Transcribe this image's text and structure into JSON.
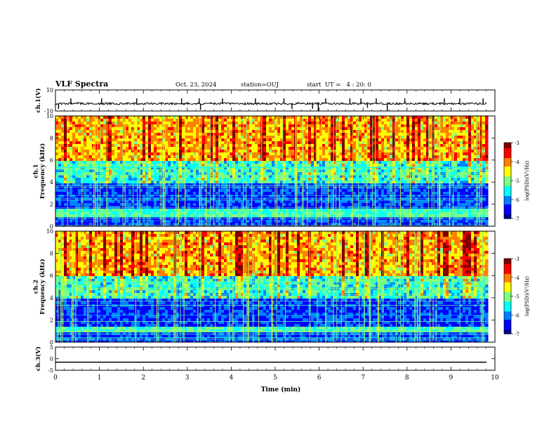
{
  "header": {
    "title": "VLF Spectra",
    "date": "Oct. 23, 2024",
    "station": "station=OUJ",
    "start": "start  UT =   4 : 20: 0"
  },
  "chart_data": [
    {
      "type": "line",
      "name": "waveform-ch1",
      "ylabel": "ch.1(V)",
      "ylim": [
        -10,
        10
      ],
      "yticks": [
        "10",
        "-10"
      ],
      "xlim": [
        0,
        10
      ],
      "baseline": -3,
      "spikes": [
        {
          "t": 0.07,
          "v": -8
        },
        {
          "t": 0.35,
          "v": 2
        },
        {
          "t": 1.05,
          "v": 2
        },
        {
          "t": 1.85,
          "v": 2
        },
        {
          "t": 2.87,
          "v": 2
        },
        {
          "t": 3.27,
          "v": 2
        },
        {
          "t": 3.3,
          "v": -9
        },
        {
          "t": 3.8,
          "v": 2
        },
        {
          "t": 4.55,
          "v": 2
        },
        {
          "t": 5.2,
          "v": 2
        },
        {
          "t": 5.38,
          "v": -8
        },
        {
          "t": 5.85,
          "v": -8
        },
        {
          "t": 5.98,
          "v": -10
        },
        {
          "t": 6.15,
          "v": 2
        },
        {
          "t": 6.7,
          "v": 2
        },
        {
          "t": 6.95,
          "v": 2
        },
        {
          "t": 7.1,
          "v": -7
        },
        {
          "t": 7.3,
          "v": 2
        },
        {
          "t": 7.55,
          "v": -10
        },
        {
          "t": 7.95,
          "v": 2
        },
        {
          "t": 8.85,
          "v": 2
        },
        {
          "t": 9.2,
          "v": 2
        },
        {
          "t": 9.73,
          "v": 2
        }
      ]
    },
    {
      "type": "heatmap",
      "name": "spectrogram-ch1",
      "ylabel": "ch.1 Frequency (kHz)",
      "ylim": [
        0,
        10
      ],
      "yticks": [
        "0",
        "2",
        "4",
        "6",
        "8",
        "10"
      ],
      "xlim": [
        0,
        10
      ],
      "colorbar": {
        "label": "log(PSD)(V²/Hz)",
        "ticks": [
          "-3",
          "-4",
          "-5",
          "-6",
          "-7"
        ],
        "range": [
          -7,
          -3
        ]
      }
    },
    {
      "type": "heatmap",
      "name": "spectrogram-ch2",
      "ylabel": "ch.2 Frequency (kHz)",
      "ylim": [
        0,
        10
      ],
      "yticks": [
        "0",
        "2",
        "4",
        "6",
        "8",
        "10"
      ],
      "xlim": [
        0,
        10
      ],
      "colorbar": {
        "label": "log(PSD)(V²/Hz)",
        "ticks": [
          "-3",
          "-4",
          "-5",
          "-6",
          "-7"
        ],
        "range": [
          -7,
          -3
        ]
      }
    },
    {
      "type": "line",
      "name": "waveform-ch3",
      "ylabel": "ch.3(V)",
      "ylim": [
        -5,
        5
      ],
      "yticks": [
        "5",
        "0",
        "-5"
      ],
      "xlim": [
        0,
        10
      ],
      "baseline": -1.5
    }
  ],
  "xaxis": {
    "label": "Time (min)",
    "ticks": [
      "0",
      "1",
      "2",
      "3",
      "4",
      "5",
      "6",
      "7",
      "8",
      "9",
      "10"
    ]
  },
  "colors": {
    "jet": [
      "#00008f",
      "#0000ff",
      "#0080ff",
      "#00ffff",
      "#80ff80",
      "#ffff00",
      "#ff8000",
      "#ff0000",
      "#800000"
    ]
  }
}
